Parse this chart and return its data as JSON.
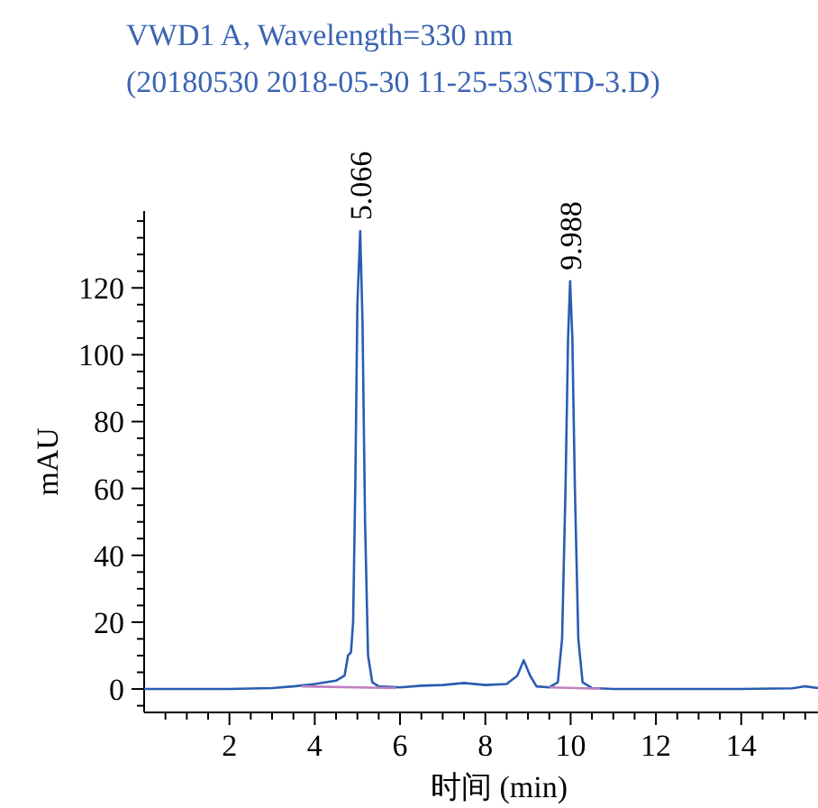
{
  "chart_data": {
    "type": "line",
    "title": "VWD1 A, Wavelength=330 nm",
    "subtitle": "(20180530 2018-05-30 11-25-53\\STD-3.D)",
    "xlabel": "时间 (min)",
    "ylabel": "mAU",
    "xlim": [
      0,
      15.8
    ],
    "ylim": [
      -7,
      143
    ],
    "xticks": [
      {
        "value": 0.5,
        "label": null
      },
      {
        "value": 1,
        "label": null
      },
      {
        "value": 1.5,
        "label": null
      },
      2,
      {
        "value": 2.5,
        "label": null
      },
      {
        "value": 3,
        "label": null
      },
      {
        "value": 3.5,
        "label": null
      },
      4,
      {
        "value": 4.5,
        "label": null
      },
      {
        "value": 5,
        "label": null
      },
      {
        "value": 5.5,
        "label": null
      },
      6,
      {
        "value": 6.5,
        "label": null
      },
      {
        "value": 7,
        "label": null
      },
      {
        "value": 7.5,
        "label": null
      },
      8,
      {
        "value": 8.5,
        "label": null
      },
      {
        "value": 9,
        "label": null
      },
      {
        "value": 9.5,
        "label": null
      },
      10,
      {
        "value": 10.5,
        "label": null
      },
      {
        "value": 11,
        "label": null
      },
      {
        "value": 11.5,
        "label": null
      },
      12,
      {
        "value": 12.5,
        "label": null
      },
      {
        "value": 13,
        "label": null
      },
      {
        "value": 13.5,
        "label": null
      },
      14,
      {
        "value": 14.5,
        "label": null
      },
      {
        "value": 15,
        "label": null
      },
      {
        "value": 15.5,
        "label": null
      }
    ],
    "yticks": [
      {
        "value": -5,
        "label": null
      },
      0,
      {
        "value": 5,
        "label": null
      },
      {
        "value": 10,
        "label": null
      },
      {
        "value": 15,
        "label": null
      },
      20,
      {
        "value": 25,
        "label": null
      },
      {
        "value": 30,
        "label": null
      },
      {
        "value": 35,
        "label": null
      },
      40,
      {
        "value": 45,
        "label": null
      },
      {
        "value": 50,
        "label": null
      },
      {
        "value": 55,
        "label": null
      },
      60,
      {
        "value": 65,
        "label": null
      },
      {
        "value": 70,
        "label": null
      },
      {
        "value": 75,
        "label": null
      },
      80,
      {
        "value": 85,
        "label": null
      },
      {
        "value": 90,
        "label": null
      },
      {
        "value": 95,
        "label": null
      },
      100,
      {
        "value": 105,
        "label": null
      },
      {
        "value": 110,
        "label": null
      },
      {
        "value": 115,
        "label": null
      },
      120,
      {
        "value": 125,
        "label": null
      },
      {
        "value": 130,
        "label": null
      },
      {
        "value": 135,
        "label": null
      },
      {
        "value": 140,
        "label": null
      }
    ],
    "grid": false,
    "series": [
      {
        "color": "#2a5db0",
        "x": [
          0,
          2,
          3,
          3.5,
          4,
          4.5,
          4.7,
          4.78,
          4.85,
          4.9,
          4.95,
          5,
          5.066,
          5.12,
          5.18,
          5.25,
          5.35,
          5.5,
          6,
          6.5,
          7,
          7.5,
          8,
          8.5,
          8.75,
          8.9,
          9.05,
          9.2,
          9.5,
          9.7,
          9.8,
          9.88,
          9.94,
          9.988,
          10.04,
          10.1,
          10.18,
          10.28,
          10.5,
          11,
          14,
          15.2,
          15.5,
          15.8
        ],
        "values": [
          0,
          0,
          0.3,
          0.8,
          1.5,
          2.5,
          4,
          10,
          11,
          20,
          60,
          115,
          137,
          110,
          50,
          10,
          2,
          0.8,
          0.5,
          1,
          1.2,
          1.8,
          1.2,
          1.5,
          4,
          8.6,
          4,
          0.8,
          0.5,
          2,
          15,
          60,
          105,
          122,
          105,
          60,
          15,
          2,
          0.3,
          0,
          0,
          0.2,
          0.8,
          0.3
        ]
      },
      {
        "color": "#c080c0",
        "x": [
          3.7,
          5.9,
          7.7,
          9.5,
          10.7
        ],
        "values": [
          0.8,
          0.3,
          null,
          0.5,
          0.1
        ]
      }
    ],
    "annotations": [
      {
        "text": "5.066",
        "x": 5.066,
        "y": 137
      },
      {
        "text": "9.988",
        "x": 9.988,
        "y": 122
      }
    ]
  }
}
